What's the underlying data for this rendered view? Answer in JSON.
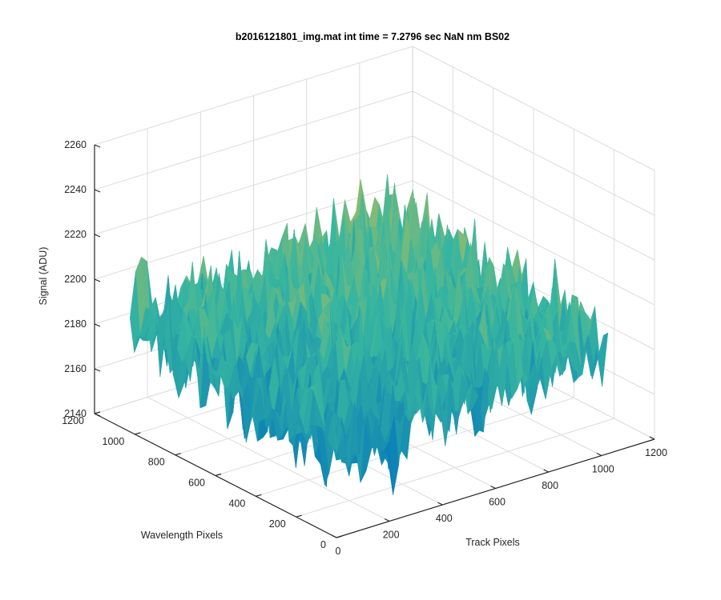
{
  "chart_data": {
    "type": "surface",
    "title": "b2016121801_img.mat int time = 7.2796 sec  NaN nm BS02",
    "xlabel": "Track Pixels",
    "ylabel": "Wavelength Pixels",
    "zlabel": "Signal (ADU)",
    "xlim": [
      0,
      1200
    ],
    "ylim": [
      0,
      1200
    ],
    "zlim": [
      2140,
      2260
    ],
    "x_ticks": [
      0,
      200,
      400,
      600,
      800,
      1000,
      1200
    ],
    "y_ticks": [
      0,
      200,
      400,
      600,
      800,
      1000,
      1200
    ],
    "z_ticks": [
      2140,
      2160,
      2180,
      2200,
      2220,
      2240,
      2260
    ],
    "x_tick_labels": [
      "0",
      "200",
      "400",
      "600",
      "800",
      "1000",
      "1200"
    ],
    "y_tick_labels": [
      "0",
      "200",
      "400",
      "600",
      "800",
      "1000",
      "1200"
    ],
    "z_tick_labels": [
      "2140",
      "2160",
      "2180",
      "2200",
      "2220",
      "2240",
      "2260"
    ],
    "data_extent": {
      "x": [
        0,
        1024
      ],
      "y": [
        0,
        1024
      ]
    },
    "view": "3d-default",
    "grid": true,
    "colormap": "parula",
    "surface_description": "noisy frame; signal lowest near origin (~2160 ADU) rising to ~2215 ADU at the far corner, noise about ±15 ADU",
    "surface_model": {
      "base": 2188,
      "gradient_x": 0.012,
      "gradient_y": 0.012,
      "noise_amplitude": 16
    },
    "colors": {
      "low": "#0072bd",
      "mid": "#37b6a0",
      "high": "#e8c03a"
    }
  }
}
